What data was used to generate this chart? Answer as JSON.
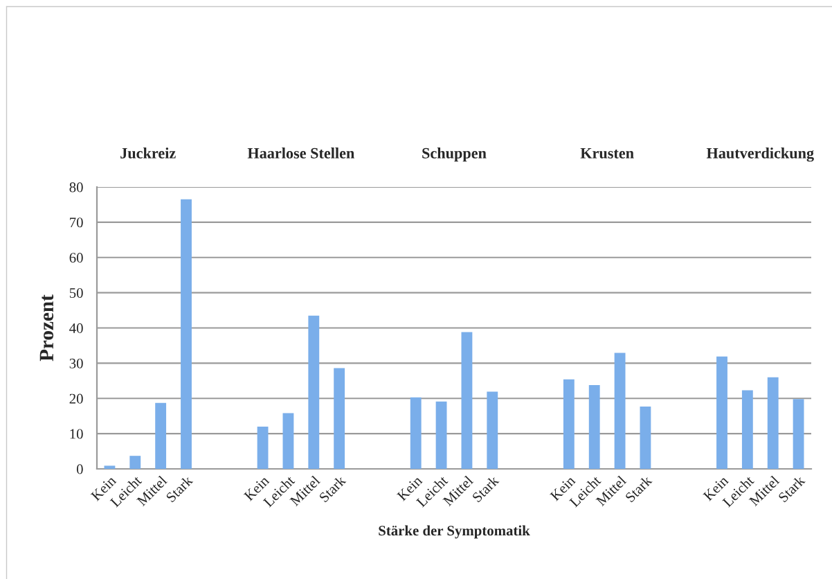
{
  "chart_data": {
    "type": "bar",
    "xlabel": "Stärke der Symptomatik",
    "ylabel": "Prozent",
    "categories": [
      "Kein",
      "Leicht",
      "Mittel",
      "Stark",
      null,
      null,
      "Kein",
      "Leicht",
      "Mittel",
      "Stark",
      null,
      null,
      "Kein",
      "Leicht",
      "Mittel",
      "Stark",
      null,
      null,
      "Kein",
      "Leicht",
      "Mittel",
      "Stark",
      null,
      null,
      "Kein",
      "Leicht",
      "Mittel",
      "Stark"
    ],
    "values": [
      0.9,
      3.7,
      18.7,
      76.5,
      null,
      null,
      12.0,
      15.8,
      43.5,
      28.6,
      null,
      null,
      20.3,
      19.1,
      38.8,
      21.9,
      null,
      null,
      25.4,
      23.8,
      32.9,
      17.7,
      null,
      null,
      31.9,
      22.3,
      26.0,
      19.8
    ],
    "color": "#7aaeea",
    "ylim": [
      0,
      80
    ],
    "yticks": [
      0,
      10,
      20,
      30,
      40,
      50,
      60,
      70,
      80
    ],
    "grid": "y",
    "annotations": [
      "Juckreiz",
      "Haarlose Stellen",
      "Schuppen",
      "Krusten",
      "Hautverdickung"
    ]
  }
}
